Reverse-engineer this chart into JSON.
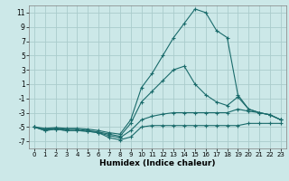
{
  "xlabel": "Humidex (Indice chaleur)",
  "bg_color": "#cce8e8",
  "line_color": "#1a6b6b",
  "grid_color": "#aacccc",
  "xlim": [
    -0.5,
    23.5
  ],
  "ylim": [
    -8,
    12
  ],
  "yticks": [
    -7,
    -5,
    -3,
    -1,
    1,
    3,
    5,
    7,
    9,
    11
  ],
  "xticks": [
    0,
    1,
    2,
    3,
    4,
    5,
    6,
    7,
    8,
    9,
    10,
    11,
    12,
    13,
    14,
    15,
    16,
    17,
    18,
    19,
    20,
    21,
    22,
    23
  ],
  "series": [
    {
      "x": [
        0,
        1,
        2,
        3,
        4,
        5,
        6,
        7,
        8,
        9,
        10,
        11,
        12,
        13,
        14,
        15,
        16,
        17,
        18,
        19,
        20,
        21,
        22,
        23
      ],
      "y": [
        -5,
        -5.5,
        -5.3,
        -5.5,
        -5.5,
        -5.6,
        -5.8,
        -6.5,
        -6.8,
        -6.4,
        -5.0,
        -4.8,
        -4.8,
        -4.8,
        -4.8,
        -4.8,
        -4.8,
        -4.8,
        -4.8,
        -4.8,
        -4.5,
        -4.5,
        -4.5,
        -4.5
      ]
    },
    {
      "x": [
        0,
        1,
        2,
        3,
        4,
        5,
        6,
        7,
        8,
        9,
        10,
        11,
        12,
        13,
        14,
        15,
        16,
        17,
        18,
        19,
        20,
        21,
        22,
        23
      ],
      "y": [
        -5,
        -5.5,
        -5.3,
        -5.5,
        -5.5,
        -5.6,
        -5.8,
        -6.2,
        -6.5,
        -5.5,
        -4.0,
        -3.5,
        -3.2,
        -3.0,
        -3.0,
        -3.0,
        -3.0,
        -3.0,
        -3.0,
        -2.5,
        -2.8,
        -3.0,
        -3.3,
        -4.0
      ]
    },
    {
      "x": [
        0,
        1,
        2,
        3,
        4,
        5,
        6,
        7,
        8,
        9,
        10,
        11,
        12,
        13,
        14,
        15,
        16,
        17,
        18,
        19,
        20,
        21,
        22,
        23
      ],
      "y": [
        -5,
        -5.3,
        -5.2,
        -5.3,
        -5.3,
        -5.5,
        -5.7,
        -6.0,
        -6.3,
        -4.5,
        -1.5,
        0.0,
        1.5,
        3.0,
        3.5,
        1.0,
        -0.5,
        -1.5,
        -2.0,
        -0.8,
        -2.5,
        -3.0,
        -3.3,
        -4.0
      ]
    },
    {
      "x": [
        0,
        1,
        2,
        3,
        4,
        5,
        6,
        7,
        8,
        9,
        10,
        11,
        12,
        13,
        14,
        15,
        16,
        17,
        18,
        19,
        20,
        21,
        22,
        23
      ],
      "y": [
        -5,
        -5.2,
        -5.1,
        -5.2,
        -5.2,
        -5.3,
        -5.5,
        -5.8,
        -6.0,
        -4.0,
        0.5,
        2.5,
        5.0,
        7.5,
        9.5,
        11.5,
        11.0,
        8.5,
        7.5,
        -0.5,
        -2.5,
        -3.0,
        -3.3,
        -4.0
      ]
    }
  ]
}
